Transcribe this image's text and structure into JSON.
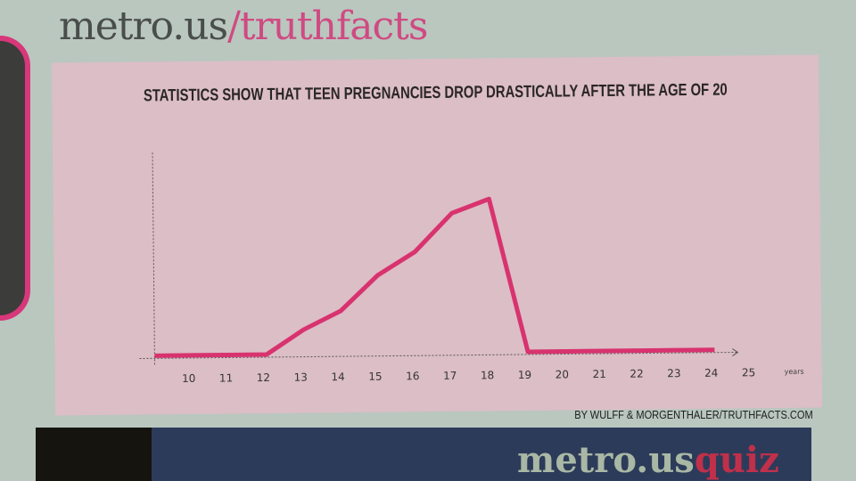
{
  "masthead": {
    "site": "metro.us",
    "section": "/truthfacts"
  },
  "credit": "BY WULFF & MORGENTHALER/TRUTHFACTS.COM",
  "bottom_logo": {
    "site": "metro.us",
    "section": "quiz"
  },
  "colors": {
    "line": "#d8336f",
    "panel": "#dcbec6",
    "brand_pink": "#d04a82"
  },
  "chart_data": {
    "type": "line",
    "title": "STATISTICS SHOW THAT TEEN PREGNANCIES DROP DRASTICALLY AFTER THE AGE OF 20",
    "xlabel": "years",
    "ylabel": "",
    "x": [
      10,
      11,
      12,
      13,
      14,
      15,
      16,
      17,
      18,
      19,
      20,
      21,
      22,
      23,
      24,
      25
    ],
    "values": [
      0,
      0,
      0,
      0,
      16,
      28,
      51,
      66,
      91,
      100,
      0,
      0,
      0,
      0,
      0,
      0
    ],
    "xlim": [
      10,
      25
    ],
    "ylim": [
      0,
      100
    ],
    "y_tick_labels": "none",
    "grid": false
  }
}
